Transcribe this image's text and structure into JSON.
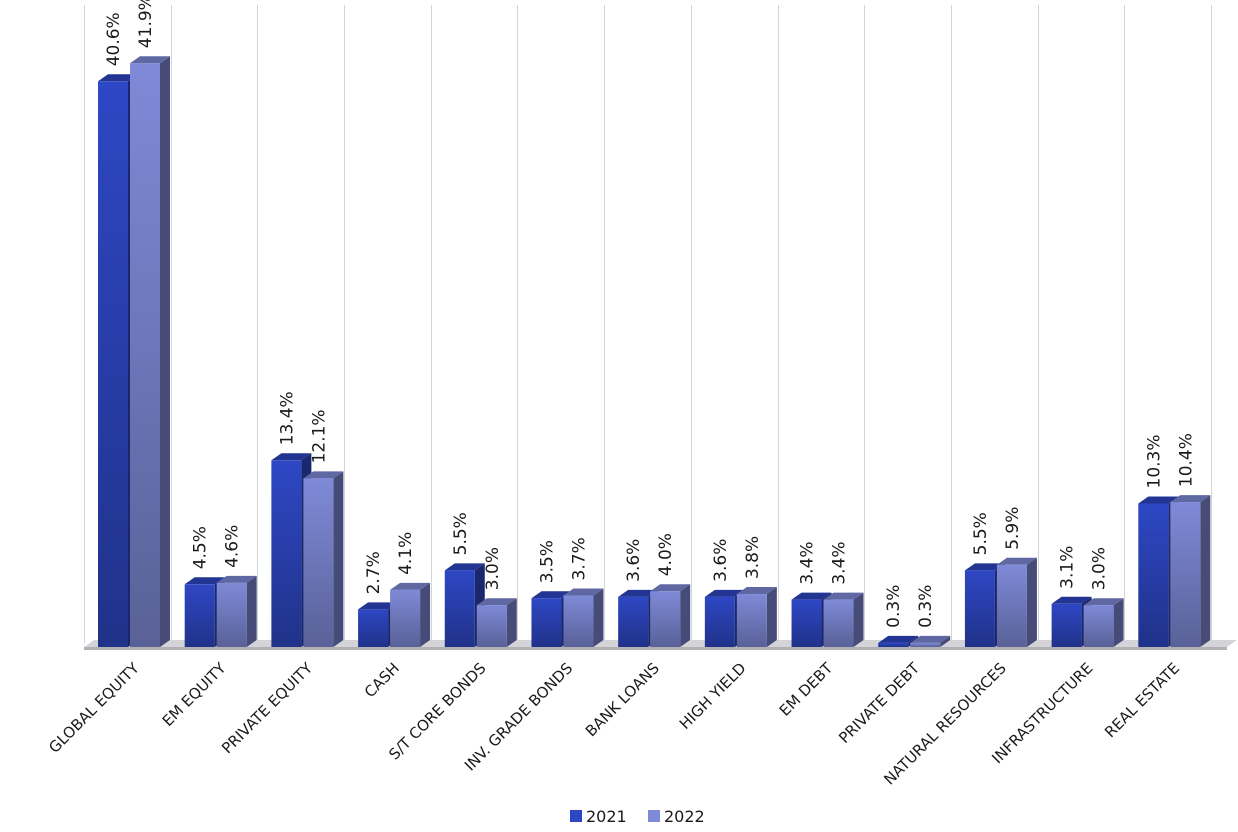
{
  "chart_data": {
    "type": "bar",
    "categories": [
      "GLOBAL EQUITY",
      "EM EQUITY",
      "PRIVATE EQUITY",
      "CASH",
      "S/T CORE BONDS",
      "INV. GRADE BONDS",
      "BANK LOANS",
      "HIGH YIELD",
      "EM DEBT",
      "PRIVATE DEBT",
      "NATURAL RESOURCES",
      "INFRASTRUCTURE",
      "REAL ESTATE"
    ],
    "series": [
      {
        "name": "2021",
        "values": [
          40.6,
          4.5,
          13.4,
          2.7,
          5.5,
          3.5,
          3.6,
          3.6,
          3.4,
          0.3,
          5.5,
          3.1,
          10.3
        ],
        "labels": [
          "40.6%",
          "4.5%",
          "13.4%",
          "2.7%",
          "5.5%",
          "3.5%",
          "3.6%",
          "3.6%",
          "3.4%",
          "0.3%",
          "5.5%",
          "3.1%",
          "10.3%"
        ],
        "color": "#2e47c4"
      },
      {
        "name": "2022",
        "values": [
          41.9,
          4.6,
          12.1,
          4.1,
          3.0,
          3.7,
          4.0,
          3.8,
          3.4,
          0.3,
          5.9,
          3.0,
          10.4
        ],
        "labels": [
          "41.9%",
          "4.6%",
          "12.1%",
          "4.1%",
          "3.0%",
          "3.7%",
          "4.0%",
          "3.8%",
          "3.4%",
          "0.3%",
          "5.9%",
          "3.0%",
          "10.4%"
        ],
        "color": "#7f8ad8"
      }
    ],
    "ylim": [
      0,
      45
    ],
    "grid": "vertical",
    "legend": "bottom-center"
  }
}
